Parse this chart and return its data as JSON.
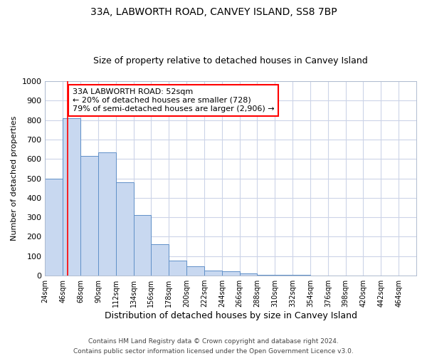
{
  "title1": "33A, LABWORTH ROAD, CANVEY ISLAND, SS8 7BP",
  "title2": "Size of property relative to detached houses in Canvey Island",
  "xlabel": "Distribution of detached houses by size in Canvey Island",
  "ylabel": "Number of detached properties",
  "footer1": "Contains HM Land Registry data © Crown copyright and database right 2024.",
  "footer2": "Contains public sector information licensed under the Open Government Licence v3.0.",
  "annotation_line1": "33A LABWORTH ROAD: 52sqm",
  "annotation_line2": "← 20% of detached houses are smaller (728)",
  "annotation_line3": "79% of semi-detached houses are larger (2,906) →",
  "bar_left_edges": [
    24,
    46,
    68,
    90,
    112,
    134,
    156,
    178,
    200,
    222,
    244,
    266,
    288,
    310,
    332,
    354,
    376,
    398,
    420,
    442,
    464
  ],
  "bar_widths": [
    22,
    22,
    22,
    22,
    22,
    22,
    22,
    22,
    22,
    22,
    22,
    22,
    22,
    22,
    22,
    22,
    22,
    22,
    22,
    22,
    22
  ],
  "bar_heights": [
    500,
    810,
    615,
    635,
    480,
    310,
    160,
    78,
    47,
    25,
    22,
    12,
    5,
    5,
    3,
    2,
    1,
    1,
    1,
    1,
    1
  ],
  "bar_facecolor": "#c8d8f0",
  "bar_edgecolor": "#6090c8",
  "red_line_x": 52,
  "ylim": [
    0,
    1000
  ],
  "yticks": [
    0,
    100,
    200,
    300,
    400,
    500,
    600,
    700,
    800,
    900,
    1000
  ],
  "xtick_labels": [
    "24sqm",
    "46sqm",
    "68sqm",
    "90sqm",
    "112sqm",
    "134sqm",
    "156sqm",
    "178sqm",
    "200sqm",
    "222sqm",
    "244sqm",
    "266sqm",
    "288sqm",
    "310sqm",
    "332sqm",
    "354sqm",
    "376sqm",
    "398sqm",
    "420sqm",
    "442sqm",
    "464sqm"
  ],
  "grid_color": "#ccd4e8",
  "annotation_box_edgecolor": "red",
  "annotation_box_facecolor": "white",
  "title_fontsize": 10,
  "subtitle_fontsize": 9,
  "ylabel_fontsize": 8,
  "xlabel_fontsize": 9
}
